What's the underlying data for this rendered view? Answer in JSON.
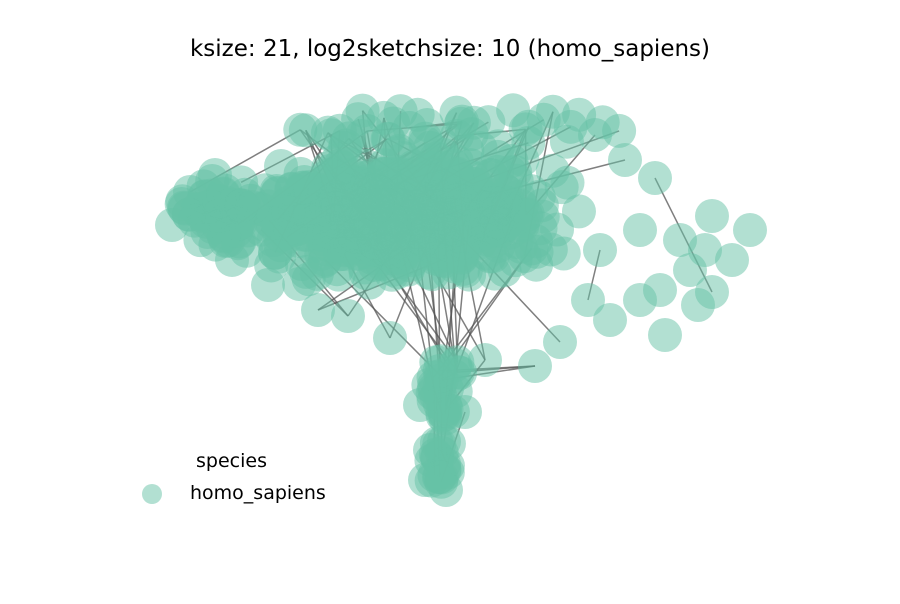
{
  "chart_data": {
    "type": "network",
    "title": "ksize: 21, log2sketchsize: 10 (homo_sapiens)",
    "legend": {
      "title": "species",
      "entries": [
        {
          "label": "homo_sapiens",
          "color": "#66c2a5"
        }
      ],
      "placement": "lower-left"
    },
    "node_color": "#66c2a5",
    "node_opacity": 0.5,
    "edge_color": "#555555",
    "axes_visible": false,
    "grid": false
  }
}
